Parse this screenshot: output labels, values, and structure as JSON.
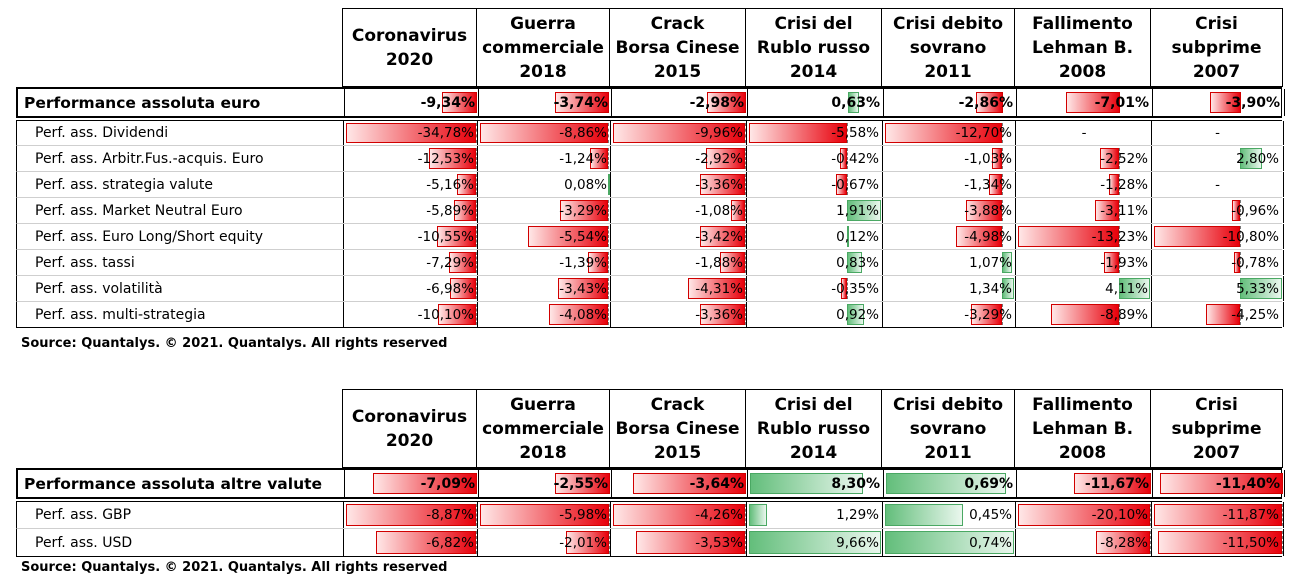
{
  "tables": [
    {
      "columns": [
        "Coronavirus\n2020",
        "Guerra\ncommerciale\n2018",
        "Crack\nBorsa Cinese\n2015",
        "Crisi del\nRublo russo\n2014",
        "Crisi debito\nsovrano\n2011",
        "Fallimento\nLehman B.\n2008",
        "Crisi\nsubprime\n2007"
      ],
      "main_row": {
        "label": "Performance assoluta euro",
        "values": [
          -9.34,
          -3.74,
          -2.98,
          0.63,
          -2.86,
          -7.01,
          -3.9
        ],
        "texts": [
          "-9,34%",
          "-3,74%",
          "-2,98%",
          "0,63%",
          "-2,86%",
          "-7,01%",
          "-3,90%"
        ]
      },
      "rows": [
        {
          "label": "Perf. ass. Dividendi",
          "values": [
            -34.78,
            -8.86,
            -9.96,
            -5.58,
            -12.7,
            null,
            null
          ],
          "texts": [
            "-34,78%",
            "-8,86%",
            "-9,96%",
            "-5,58%",
            "-12,70%",
            "-",
            "-"
          ]
        },
        {
          "label": "Perf. ass. Arbitr.Fus.-acquis. Euro",
          "values": [
            -12.53,
            -1.24,
            -2.92,
            -0.42,
            -1.03,
            -2.52,
            2.8
          ],
          "texts": [
            "-12,53%",
            "-1,24%",
            "-2,92%",
            "-0,42%",
            "-1,03%",
            "-2,52%",
            "2,80%"
          ]
        },
        {
          "label": "Perf. ass. strategia valute",
          "values": [
            -5.16,
            0.08,
            -3.36,
            -0.67,
            -1.34,
            -1.28,
            null
          ],
          "texts": [
            "-5,16%",
            "0,08%",
            "-3,36%",
            "-0,67%",
            "-1,34%",
            "-1,28%",
            "-"
          ]
        },
        {
          "label": "Perf. ass. Market Neutral Euro",
          "values": [
            -5.89,
            -3.29,
            -1.08,
            1.91,
            -3.88,
            -3.11,
            -0.96
          ],
          "texts": [
            "-5,89%",
            "-3,29%",
            "-1,08%",
            "1,91%",
            "-3,88%",
            "-3,11%",
            "-0,96%"
          ]
        },
        {
          "label": "Perf. ass. Euro Long/Short equity",
          "values": [
            -10.55,
            -5.54,
            -3.42,
            0.12,
            -4.98,
            -13.23,
            -10.8
          ],
          "texts": [
            "-10,55%",
            "-5,54%",
            "-3,42%",
            "0,12%",
            "-4,98%",
            "-13,23%",
            "-10,80%"
          ]
        },
        {
          "label": "Perf. ass. tassi",
          "values": [
            -7.29,
            -1.39,
            -1.88,
            0.83,
            1.07,
            -1.93,
            -0.78
          ],
          "texts": [
            "-7,29%",
            "-1,39%",
            "-1,88%",
            "0,83%",
            "1,07%",
            "-1,93%",
            "-0,78%"
          ]
        },
        {
          "label": "Perf. ass. volatilità",
          "values": [
            -6.98,
            -3.43,
            -4.31,
            -0.35,
            1.34,
            4.11,
            5.33
          ],
          "texts": [
            "-6,98%",
            "-3,43%",
            "-4,31%",
            "-0,35%",
            "1,34%",
            "4,11%",
            "5,33%"
          ]
        },
        {
          "label": "Perf. ass. multi-strategia",
          "values": [
            -10.1,
            -4.08,
            -3.36,
            0.92,
            -3.29,
            -8.89,
            -4.25
          ],
          "texts": [
            "-10,10%",
            "-4,08%",
            "-3,36%",
            "0,92%",
            "-3,29%",
            "-8,89%",
            "-4,25%"
          ]
        }
      ],
      "source": "Source: Quantalys. © 2021. Quantalys. All rights reserved"
    },
    {
      "columns": [
        "Coronavirus\n2020",
        "Guerra\ncommerciale\n2018",
        "Crack\nBorsa Cinese\n2015",
        "Crisi del\nRublo russo\n2014",
        "Crisi debito\nsovrano\n2011",
        "Fallimento\nLehman B.\n2008",
        "Crisi\nsubprime\n2007"
      ],
      "main_row": {
        "label": "Performance assoluta altre valute",
        "values": [
          -7.09,
          -2.55,
          -3.64,
          8.3,
          0.69,
          -11.67,
          -11.4
        ],
        "texts": [
          "-7,09%",
          "-2,55%",
          "-3,64%",
          "8,30%",
          "0,69%",
          "-11,67%",
          "-11,40%"
        ]
      },
      "rows": [
        {
          "label": "Perf. ass. GBP",
          "values": [
            -8.87,
            -5.98,
            -4.26,
            1.29,
            0.45,
            -20.1,
            -11.87
          ],
          "texts": [
            "-8,87%",
            "-5,98%",
            "-4,26%",
            "1,29%",
            "0,45%",
            "-20,10%",
            "-11,87%"
          ]
        },
        {
          "label": "Perf. ass. USD",
          "values": [
            -6.82,
            -2.01,
            -3.53,
            9.66,
            0.74,
            -8.28,
            -11.5
          ],
          "texts": [
            "-6,82%",
            "-2,01%",
            "-3,53%",
            "9,66%",
            "0,74%",
            "-8,28%",
            "-11,50%"
          ]
        }
      ],
      "source": "Source: Quantalys. © 2021. Quantalys. All rights reserved"
    }
  ],
  "colors": {
    "negative_bar": "#e8000b",
    "positive_bar": "#63be7b",
    "border": "#000000"
  }
}
